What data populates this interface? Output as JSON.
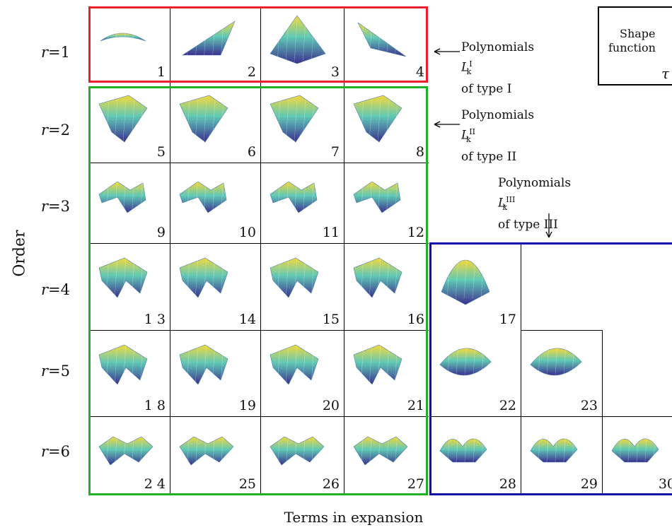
{
  "axis": {
    "y_label": "Order",
    "x_label": "Terms in expansion"
  },
  "rows": [
    {
      "r": "1",
      "prefix": "r",
      "eq": "="
    },
    {
      "r": "2",
      "prefix": "r",
      "eq": "="
    },
    {
      "r": "3",
      "prefix": "r",
      "eq": "="
    },
    {
      "r": "4",
      "prefix": "r",
      "eq": "="
    },
    {
      "r": "5",
      "prefix": "r",
      "eq": "="
    },
    {
      "r": "6",
      "prefix": "r",
      "eq": "="
    }
  ],
  "annotations": {
    "type1": {
      "line1": "Polynomials",
      "sym": "L",
      "sup": "I",
      "sub": "k",
      "line2": "of type I"
    },
    "type2": {
      "line1": "Polynomials",
      "sym": "L",
      "sup": "II",
      "sub": "k",
      "line2": "of type II"
    },
    "type3": {
      "line1": "Polynomials",
      "sym": "L",
      "sup": "III",
      "sub": "k",
      "line2": "of type III"
    }
  },
  "legend": {
    "line1": "Shape",
    "line2": "function",
    "symbol": "τ"
  },
  "colors": {
    "type1": "#e8202a",
    "type2": "#22b02a",
    "type3": "#1010a8",
    "border": "#000000"
  },
  "cells": [
    {
      "num": "1",
      "shape": "arch"
    },
    {
      "num": "2",
      "shape": "wedge"
    },
    {
      "num": "3",
      "shape": "pyramid"
    },
    {
      "num": "4",
      "shape": "wedge-r"
    },
    {
      "num": "5",
      "shape": "saddle"
    },
    {
      "num": "6",
      "shape": "saddle"
    },
    {
      "num": "7",
      "shape": "saddle"
    },
    {
      "num": "8",
      "shape": "saddle"
    },
    {
      "num": "9",
      "shape": "wave"
    },
    {
      "num": "10",
      "shape": "wave"
    },
    {
      "num": "11",
      "shape": "wave"
    },
    {
      "num": "12",
      "shape": "wave"
    },
    {
      "num": "1 3",
      "shape": "wave2"
    },
    {
      "num": "14",
      "shape": "wave2"
    },
    {
      "num": "15",
      "shape": "wave2"
    },
    {
      "num": "16",
      "shape": "wave2"
    },
    {
      "num": "17",
      "shape": "dome"
    },
    {
      "num": "1 8",
      "shape": "wave2"
    },
    {
      "num": "19",
      "shape": "wave2"
    },
    {
      "num": "20",
      "shape": "wave2"
    },
    {
      "num": "21",
      "shape": "wave2"
    },
    {
      "num": "22",
      "shape": "bubble"
    },
    {
      "num": "23",
      "shape": "bubble"
    },
    {
      "num": "2 4",
      "shape": "wave3"
    },
    {
      "num": "25",
      "shape": "wave3"
    },
    {
      "num": "26",
      "shape": "wave3"
    },
    {
      "num": "27",
      "shape": "wave3"
    },
    {
      "num": "28",
      "shape": "bumps"
    },
    {
      "num": "29",
      "shape": "bumps"
    },
    {
      "num": "30",
      "shape": "bumps"
    }
  ]
}
